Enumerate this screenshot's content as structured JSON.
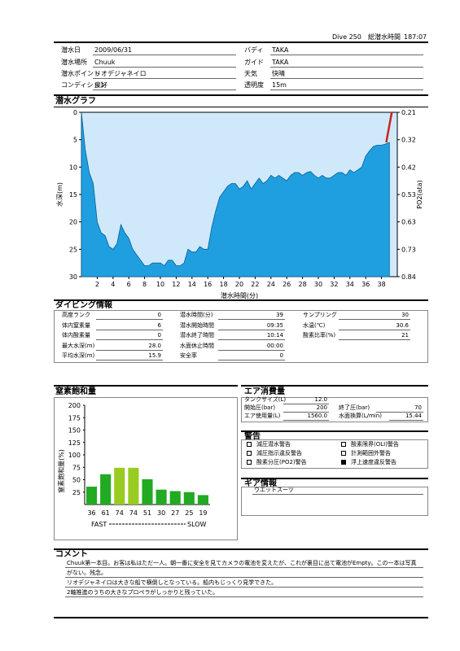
{
  "header": {
    "dive_label": "Dive 250",
    "total_label": "総潜水時間",
    "total_value": "187:07"
  },
  "info": {
    "left": [
      {
        "label": "潜水日",
        "value": "2009/06/31"
      },
      {
        "label": "潜水場所",
        "value": "Chuuk"
      },
      {
        "label": "潜水ポイント",
        "value": "リオデジャネイロ"
      },
      {
        "label": "コンディション",
        "value": "良好"
      }
    ],
    "right": [
      {
        "label": "バディ",
        "value": "TAKA"
      },
      {
        "label": "ガイド",
        "value": "TAKA"
      },
      {
        "label": "天気",
        "value": "快晴"
      },
      {
        "label": "透明度",
        "value": "15m"
      }
    ]
  },
  "dive_graph": {
    "title": "潜水グラフ",
    "ylabel": "水深(m)",
    "y2label": "PO2(ata)",
    "xlabel": "潜水時間(分)",
    "fill_color": "#1f9fe0",
    "bg_color": "#cfe9fb",
    "ascent_color": "#cc2222"
  },
  "chart_data": {
    "type": "area",
    "title": "潜水グラフ",
    "xlabel": "潜水時間(分)",
    "ylabel": "水深(m)",
    "y2label": "PO2(ata)",
    "xlim": [
      0,
      40
    ],
    "ylim": [
      30,
      0
    ],
    "x_ticks": [
      "2",
      "4",
      "6",
      "8",
      "10",
      "12",
      "14",
      "16",
      "18",
      "20",
      "22",
      "24",
      "26",
      "28",
      "30",
      "32",
      "34",
      "36",
      "38"
    ],
    "y_ticks": [
      "0",
      "5",
      "10",
      "15",
      "20",
      "25",
      "30"
    ],
    "y2_ticks": [
      "0.21",
      "0.32",
      "0.42",
      "0.53",
      "0.63",
      "0.73",
      "0.84"
    ],
    "x": [
      0,
      0.5,
      1,
      1.5,
      2,
      2.5,
      3,
      3.5,
      4,
      4.5,
      5,
      5.5,
      6,
      6.5,
      7,
      7.5,
      8,
      8.5,
      9,
      9.5,
      10,
      10.5,
      11,
      11.5,
      12,
      12.5,
      13,
      13.5,
      14,
      14.5,
      15,
      15.5,
      16,
      16.5,
      17,
      17.5,
      18,
      18.5,
      19,
      19.5,
      20,
      20.5,
      21,
      21.5,
      22,
      22.5,
      23,
      23.5,
      24,
      24.5,
      25,
      25.5,
      26,
      26.5,
      27,
      27.5,
      28,
      28.5,
      29,
      29.5,
      30,
      30.5,
      31,
      31.5,
      32,
      32.5,
      33,
      33.5,
      34,
      34.5,
      35,
      35.5,
      36,
      36.5,
      37,
      37.5,
      38,
      38.5,
      39
    ],
    "depth": [
      0,
      7,
      11,
      13,
      20,
      22,
      22.5,
      24.5,
      25,
      24,
      20.5,
      22,
      23,
      25,
      26,
      27,
      28,
      28,
      27.5,
      27.5,
      27.5,
      28,
      27,
      27,
      28,
      28,
      27.5,
      25,
      25.5,
      25.5,
      24.5,
      25,
      25,
      21,
      18,
      15.5,
      14.5,
      13.5,
      13,
      13,
      14,
      13.5,
      12.5,
      14,
      13,
      12,
      13,
      12.5,
      11.5,
      12,
      11.5,
      12,
      12.5,
      11.5,
      11,
      11,
      11.5,
      11,
      10.8,
      11.5,
      12,
      11.5,
      12,
      12,
      11.5,
      11,
      11,
      11.5,
      10.5,
      11,
      10.5,
      10,
      8,
      7,
      6.2,
      6,
      6,
      5.8,
      5.5
    ],
    "ascent_x": [
      38.6,
      39.3
    ],
    "ascent_depth": [
      5.5,
      0
    ]
  },
  "diving_info": {
    "title": "ダイビング情報",
    "col1": [
      {
        "label": "高度ランク",
        "value": "0"
      },
      {
        "label": "体内窒素量",
        "value": "6"
      },
      {
        "label": "体内酸素量",
        "value": "0"
      },
      {
        "label": "最大水深(m)",
        "value": "28.0"
      },
      {
        "label": "平均水深(m)",
        "value": "15.9"
      }
    ],
    "col2": [
      {
        "label": "潜水時間(分)",
        "value": "39"
      },
      {
        "label": "潜水開始時間",
        "value": "09:35"
      },
      {
        "label": "潜水終了時間",
        "value": "10:14"
      },
      {
        "label": "水面休止時間",
        "value": "00:00"
      },
      {
        "label": "安全率",
        "value": "0"
      }
    ],
    "col3": [
      {
        "label": "サンプリング",
        "value": "30"
      },
      {
        "label": "水温(℃)",
        "value": "30.6"
      },
      {
        "label": "酸素比率(%)",
        "value": "21"
      }
    ]
  },
  "nitrogen": {
    "title": "窒素飽和量",
    "ylabel": "窒素飽和量(%)",
    "fast_label": "FAST",
    "slow_label": "SLOW",
    "y_ticks": [
      "25",
      "50",
      "75",
      "100",
      "125",
      "150",
      "175",
      "200"
    ],
    "values": [
      36,
      61,
      74,
      74,
      51,
      30,
      27,
      25,
      19
    ],
    "bar_colors": [
      "#22aa22",
      "#22aa22",
      "#99cc22",
      "#99cc22",
      "#22aa22",
      "#22aa22",
      "#22aa22",
      "#22aa22",
      "#22aa22"
    ]
  },
  "air": {
    "title": "エア消費量",
    "tank_label": "タンクサイズ(L)",
    "tank_value": "12.0",
    "start_label": "開始圧(bar)",
    "start_value": "200",
    "end_label": "終了圧(bar)",
    "end_value": "70",
    "used_label": "エア使用量(L)",
    "used_value": "1560.0",
    "rate_label": "水面換算(L/min)",
    "rate_value": "15.44"
  },
  "warnings": {
    "title": "警告",
    "items": [
      {
        "label": "減圧潜水警告",
        "checked": false
      },
      {
        "label": "酸素限界(OLI)警告",
        "checked": false
      },
      {
        "label": "減圧指示違反警告",
        "checked": false
      },
      {
        "label": "計測範囲外警告",
        "checked": false
      },
      {
        "label": "酸素分圧(PO2)警告",
        "checked": false
      },
      {
        "label": "浮上速度違反警告",
        "checked": true
      }
    ]
  },
  "gear": {
    "title": "ギア情報",
    "item": "ウエットスーツ"
  },
  "comments": {
    "title": "コメント",
    "lines": [
      "Chuuk第一本目。お客は私はただ一人。朝一番に安全を見てカメラの電池を変えたが、これが裏目に出て電池がEmpty。この一本は写真",
      "がない。残念。",
      "リオデジャネイロは大きな船で横倒しとなっている。船内もじっくり見学できた。",
      "2軸推進のうちの大きなプロペラがしっかりと残っていた。"
    ]
  }
}
